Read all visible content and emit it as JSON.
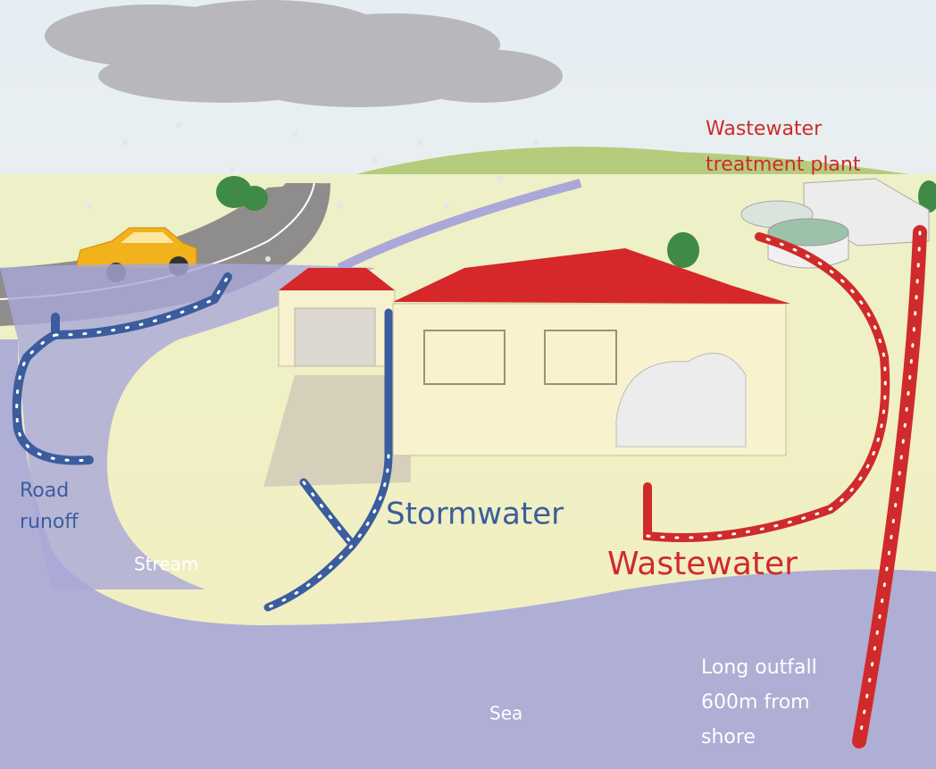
{
  "labels": {
    "treatment_plant": [
      "Wastewater",
      "treatment plant"
    ],
    "road_runoff": [
      "Road",
      "runoff"
    ],
    "stormwater": "Stormwater",
    "stream": "Stream",
    "wastewater": "Wastewater",
    "outfall": [
      "Long outfall",
      "600m from",
      "shore"
    ],
    "sea": "Sea"
  }
}
